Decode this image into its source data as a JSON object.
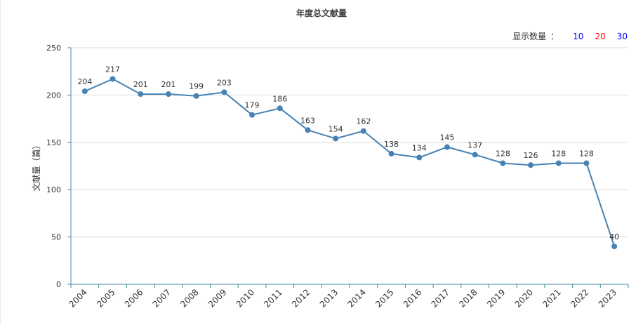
{
  "title": "年度总文献量",
  "display_count": {
    "label": "显示数量",
    "separator": "：",
    "options": [
      {
        "label": "10",
        "color": "#0000ff"
      },
      {
        "label": "20",
        "color": "#ff0000"
      },
      {
        "label": "30",
        "color": "#0000ff"
      }
    ]
  },
  "chart_data": {
    "type": "line",
    "title": "年度总文献量",
    "xlabel": "",
    "ylabel": "文献量（篇）",
    "ylim": [
      0,
      250
    ],
    "yticks": [
      0,
      50,
      100,
      150,
      200,
      250
    ],
    "grid": true,
    "categories": [
      "2004",
      "2005",
      "2006",
      "2007",
      "2008",
      "2009",
      "2010",
      "2011",
      "2012",
      "2013",
      "2014",
      "2015",
      "2016",
      "2017",
      "2018",
      "2019",
      "2020",
      "2021",
      "2022",
      "2023"
    ],
    "series": [
      {
        "values": [
          204,
          217,
          201,
          201,
          199,
          203,
          179,
          186,
          163,
          154,
          162,
          138,
          134,
          145,
          137,
          128,
          126,
          128,
          128,
          40
        ],
        "color": "#4682b4"
      }
    ]
  }
}
